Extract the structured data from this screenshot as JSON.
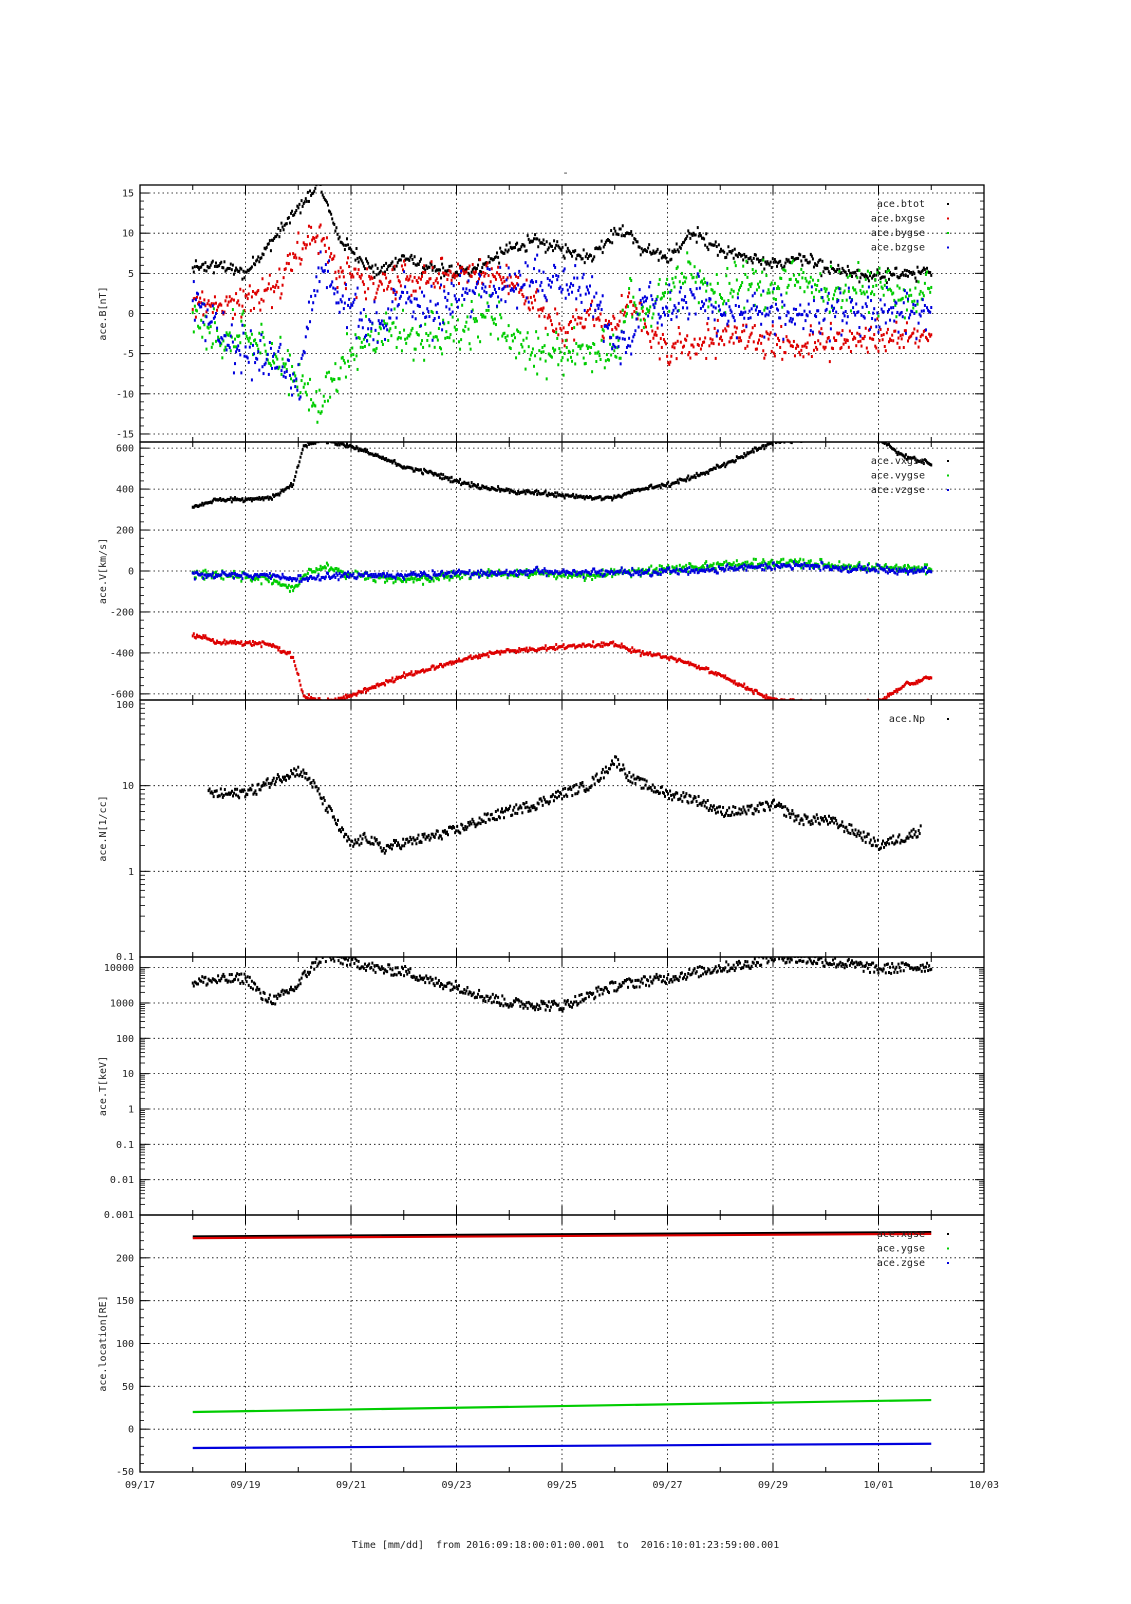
{
  "chart_data": {
    "type": "line",
    "title": "-",
    "xlabel": "Time [mm/dd]  from 2016:09:18:00:01:00.001  to  2016:10:01:23:59:00.001",
    "x_ticks": [
      "09/17",
      "09/19",
      "09/21",
      "09/23",
      "09/25",
      "09/27",
      "09/29",
      "10/01",
      "10/03"
    ],
    "x_range_days": [
      0,
      16
    ],
    "data_start_day": 1,
    "data_end_day": 15,
    "grid": true,
    "colors": {
      "black": "#000000",
      "red": "#dd0000",
      "green": "#00cc00",
      "blue": "#0000dd"
    },
    "panels": [
      {
        "ylabel": "ace.B[nT]",
        "scale": "linear",
        "ylim": [
          -16,
          16
        ],
        "yticks": [
          -15,
          -10,
          -5,
          0,
          5,
          10,
          15
        ],
        "legend": [
          "ace.btot",
          "ace.bxgse",
          "ace.bygse",
          "ace.bzgse"
        ],
        "series": [
          {
            "name": "ace.btot",
            "color": "black",
            "noise": 0.6,
            "x": [
              1,
              1.5,
              2,
              2.5,
              3,
              3.4,
              3.8,
              4.5,
              5,
              5.5,
              6,
              6.5,
              7,
              7.5,
              8,
              8.5,
              9,
              9.3,
              9.5,
              10,
              10.5,
              11,
              11.5,
              12,
              12.5,
              13,
              13.5,
              14,
              14.5,
              15
            ],
            "y": [
              5.5,
              6,
              5,
              9,
              13,
              16,
              9,
              5,
              7,
              5.5,
              5,
              6,
              8,
              9,
              8,
              7,
              10,
              10,
              8,
              7,
              10,
              8,
              7,
              6,
              7,
              5.5,
              5,
              4.5,
              5,
              5
            ]
          },
          {
            "name": "ace.bxgse",
            "color": "red",
            "noise": 1.5,
            "x": [
              1,
              1.5,
              2,
              2.5,
              3,
              3.4,
              3.8,
              4.5,
              5,
              5.5,
              6,
              6.5,
              7,
              7.5,
              8,
              8.5,
              9,
              9.3,
              9.5,
              10,
              10.5,
              11,
              11.5,
              12,
              12.5,
              13,
              13.5,
              14,
              14.5,
              15
            ],
            "y": [
              2,
              1,
              2,
              3,
              8,
              10,
              5,
              4,
              4,
              4,
              5,
              5,
              4,
              1,
              -2,
              0,
              -2,
              2,
              -1,
              -4,
              -4,
              -3,
              -3,
              -3,
              -4,
              -4,
              -3,
              -3,
              -3,
              -3
            ]
          },
          {
            "name": "ace.bygse",
            "color": "green",
            "noise": 2.0,
            "x": [
              1,
              1.5,
              2,
              2.5,
              3,
              3.4,
              3.8,
              4.5,
              5,
              5.5,
              6,
              6.5,
              7,
              7.5,
              8,
              8.5,
              9,
              9.3,
              9.5,
              10,
              10.5,
              11,
              11.5,
              12,
              12.5,
              13,
              13.5,
              14,
              14.5,
              15
            ],
            "y": [
              -1,
              -3,
              -3,
              -5,
              -8,
              -12,
              -6,
              -2,
              -3,
              -3,
              -2,
              0,
              -3,
              -5,
              -5,
              -4,
              -6,
              2,
              -1,
              3,
              5,
              2,
              4,
              3,
              4,
              3,
              3,
              3,
              2,
              3
            ]
          },
          {
            "name": "ace.bzgse",
            "color": "blue",
            "noise": 2.0,
            "x": [
              1,
              1.5,
              2,
              2.5,
              3,
              3.4,
              3.8,
              4.5,
              5,
              5.5,
              6,
              6.5,
              7,
              7.5,
              8,
              8.5,
              9,
              9.3,
              9.5,
              10,
              10.5,
              11,
              11.5,
              12,
              12.5,
              13,
              13.5,
              14,
              14.5,
              15
            ],
            "y": [
              2,
              -3,
              -5,
              -6,
              -9,
              6,
              2,
              -2,
              2,
              0,
              2,
              3,
              3,
              4,
              3,
              3,
              -3,
              -5,
              2,
              0,
              2,
              0,
              0,
              0,
              0,
              0,
              0,
              0,
              0,
              0
            ]
          }
        ]
      },
      {
        "ylabel": "ace.V[km/s]",
        "scale": "linear",
        "ylim": [
          -630,
          630
        ],
        "yticks": [
          -600,
          -400,
          -200,
          0,
          200,
          400,
          600
        ],
        "legend": [
          "ace.vxgse",
          "ace.vygse",
          "ace.vzgse"
        ],
        "series": [
          {
            "name": "ace.vxgse",
            "color": "black",
            "noise": 8,
            "x": [
              1,
              1.5,
              2,
              2.5,
              2.9,
              3.1,
              3.5,
              4,
              4.5,
              5,
              5.5,
              6,
              6.5,
              7,
              7.5,
              8,
              8.5,
              9,
              9.5,
              10,
              10.5,
              11,
              11.5,
              12,
              12.5,
              13,
              13.5,
              14,
              14.5,
              15
            ],
            "y": [
              310,
              350,
              350,
              360,
              420,
              610,
              640,
              610,
              560,
              510,
              480,
              440,
              410,
              390,
              380,
              370,
              360,
              360,
              400,
              420,
              460,
              510,
              570,
              630,
              640,
              650,
              650,
              640,
              560,
              520
            ]
          },
          {
            "name": "ace.vxgse",
            "color": "red",
            "noise": 8,
            "x": [
              1,
              1.5,
              2,
              2.5,
              2.9,
              3.1,
              3.5,
              4,
              4.5,
              5,
              5.5,
              6,
              6.5,
              7,
              7.5,
              8,
              8.5,
              9,
              9.5,
              10,
              10.5,
              11,
              11.5,
              12,
              12.5,
              13,
              13.5,
              14,
              14.5,
              15
            ],
            "y": [
              -310,
              -350,
              -350,
              -360,
              -420,
              -610,
              -640,
              -610,
              -560,
              -510,
              -480,
              -440,
              -410,
              -390,
              -380,
              -370,
              -360,
              -360,
              -400,
              -420,
              -460,
              -510,
              -570,
              -630,
              -640,
              -650,
              -650,
              -640,
              -560,
              -520
            ]
          },
          {
            "name": "ace.vygse",
            "color": "green",
            "noise": 15,
            "x": [
              1,
              1.5,
              2,
              2.5,
              2.9,
              3.1,
              3.5,
              4,
              4.5,
              5,
              5.5,
              6,
              6.5,
              7,
              7.5,
              8,
              8.5,
              9,
              9.5,
              10,
              10.5,
              11,
              11.5,
              12,
              12.5,
              13,
              13.5,
              14,
              14.5,
              15
            ],
            "y": [
              -15,
              -20,
              -30,
              -40,
              -90,
              -20,
              20,
              -20,
              -30,
              -40,
              -40,
              -20,
              -10,
              -20,
              -10,
              -20,
              -25,
              -10,
              0,
              10,
              20,
              30,
              30,
              40,
              40,
              30,
              20,
              15,
              10,
              10
            ]
          },
          {
            "name": "ace.vzgse",
            "color": "blue",
            "noise": 12,
            "x": [
              1,
              1.5,
              2,
              2.5,
              2.9,
              3.1,
              3.5,
              4,
              4.5,
              5,
              5.5,
              6,
              6.5,
              7,
              7.5,
              8,
              8.5,
              9,
              9.5,
              10,
              10.5,
              11,
              11.5,
              12,
              12.5,
              13,
              13.5,
              14,
              14.5,
              15
            ],
            "y": [
              -20,
              -20,
              -20,
              -20,
              -40,
              -40,
              -30,
              -20,
              -20,
              -20,
              -20,
              -10,
              -10,
              -10,
              0,
              -10,
              -10,
              0,
              -10,
              0,
              0,
              10,
              20,
              20,
              30,
              20,
              10,
              10,
              0,
              0
            ]
          }
        ]
      },
      {
        "ylabel": "ace.N[1/cc]",
        "scale": "log",
        "ylim": [
          0.1,
          100
        ],
        "yticks": [
          0.1,
          1,
          10,
          100
        ],
        "ytick_labels": [
          "0.1",
          "1",
          "10",
          "100"
        ],
        "legend": [
          "ace.Np"
        ],
        "series": [
          {
            "name": "ace.Np",
            "color": "black",
            "noise": 0.06,
            "x": [
              1.3,
              1.8,
              2.2,
              2.6,
              3,
              3.2,
              3.5,
              3.8,
              4,
              4.3,
              4.6,
              4.8,
              5.5,
              6,
              6.5,
              7,
              7.5,
              8,
              8.5,
              8.8,
              9,
              9.3,
              9.6,
              10,
              10.5,
              11,
              11.5,
              12,
              12.5,
              13,
              13.5,
              14,
              14.5,
              14.8
            ],
            "y": [
              8,
              8,
              9,
              12,
              15,
              12,
              6,
              3,
              2,
              2.5,
              1.8,
              2,
              2.5,
              3,
              4,
              5,
              6,
              8,
              10,
              14,
              20,
              12,
              10,
              8,
              7,
              5,
              5,
              6,
              4,
              4,
              3,
              2,
              2.5,
              3
            ]
          }
        ]
      },
      {
        "ylabel": "ace.T[keV]",
        "scale": "log",
        "ylim": [
          0.001,
          20000
        ],
        "yticks": [
          0.001,
          0.01,
          0.1,
          1,
          10,
          100,
          1000,
          10000
        ],
        "ytick_labels": [
          "0.001",
          "0.01",
          "0.1",
          "1",
          "10",
          "100",
          "1000",
          "10000"
        ],
        "legend": [],
        "series": [
          {
            "name": "",
            "color": "black",
            "noise": 0.15,
            "x": [
              1,
              1.5,
              2,
              2.3,
              2.6,
              3,
              3.2,
              3.5,
              4,
              4.5,
              5,
              5.5,
              6,
              6.5,
              7,
              7.5,
              8,
              8.5,
              9,
              9.5,
              10,
              10.5,
              11,
              11.5,
              12,
              12.5,
              13,
              13.5,
              14,
              14.5,
              15
            ],
            "y": [
              4000,
              4500,
              5000,
              1500,
              1200,
              3000,
              8000,
              20000,
              15000,
              9000,
              8000,
              4000,
              3000,
              1500,
              1000,
              900,
              800,
              1500,
              3000,
              4000,
              5000,
              7000,
              10000,
              12000,
              20000,
              18000,
              15000,
              12000,
              9000,
              10000,
              11000
            ]
          }
        ]
      },
      {
        "ylabel": "ace.location[RE]",
        "scale": "linear",
        "ylim": [
          -50,
          250
        ],
        "yticks": [
          -50,
          0,
          50,
          100,
          150,
          200
        ],
        "legend": [
          "ace.xgse",
          "ace.ygse",
          "ace.zgse"
        ],
        "series": [
          {
            "name": "",
            "color": "black",
            "noise": 0,
            "x": [
              1,
              15
            ],
            "y": [
              225,
              230
            ]
          },
          {
            "name": "",
            "color": "red",
            "noise": 0,
            "x": [
              1,
              15
            ],
            "y": [
              223,
              228
            ]
          },
          {
            "name": "ace.ygse",
            "color": "green",
            "noise": 0,
            "x": [
              1,
              15
            ],
            "y": [
              20,
              34
            ]
          },
          {
            "name": "ace.zgse",
            "color": "blue",
            "noise": 0,
            "x": [
              1,
              15
            ],
            "y": [
              -22,
              -17
            ]
          }
        ]
      }
    ]
  }
}
